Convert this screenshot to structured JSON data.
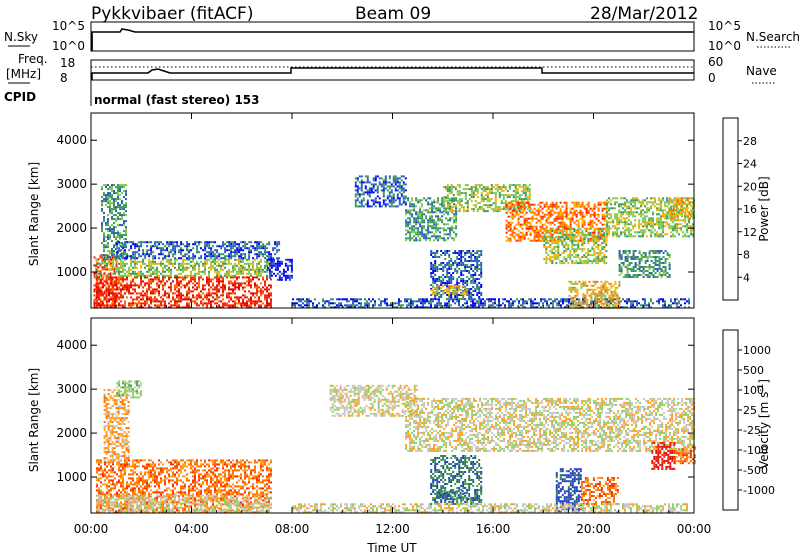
{
  "header": {
    "station": "Pykkvibaer (fitACF)",
    "beam": "Beam 09",
    "date": "28/Mar/2012"
  },
  "nsky_panel": {
    "left_label": "N.Sky",
    "right_label": "N.Search",
    "left_ticks": [
      "10^5",
      "10^0"
    ],
    "right_ticks": [
      "10^5",
      "10^0"
    ]
  },
  "freq_panel": {
    "left_label_1": "Freq.",
    "left_label_2": "[MHz]",
    "right_label": "Nave",
    "left_ticks": [
      "18",
      "8"
    ],
    "right_ticks": [
      "60",
      "0"
    ]
  },
  "cpid": {
    "label": "CPID",
    "value": "normal (fast stereo) 153"
  },
  "chart_data": [
    {
      "type": "heatmap",
      "name": "Power",
      "ylabel": "Slant Range [km]",
      "ylim": [
        180,
        4620
      ],
      "y_ticks": [
        "1000",
        "2000",
        "3000",
        "4000"
      ],
      "y_tick_values": [
        1000,
        2000,
        3000,
        4000
      ],
      "colorbar_label": "Power [dB]",
      "colorbar_ticks": [
        "28",
        "24",
        "20",
        "16",
        "12",
        "8",
        "4"
      ],
      "colorbar_colors": [
        "#0000ff",
        "#2a5cba",
        "#3c9a5a",
        "#7ec850",
        "#ffb000",
        "#ff6a00",
        "#ff2000",
        "#e00000"
      ],
      "regions": [
        {
          "t0": 0.1,
          "t1": 1.0,
          "r0": 200,
          "r1": 1400,
          "level": 6
        },
        {
          "t0": 0.2,
          "t1": 7.2,
          "r0": 200,
          "r1": 900,
          "level": 6
        },
        {
          "t0": 0.2,
          "t1": 7.2,
          "r0": 900,
          "r1": 1300,
          "level": 3
        },
        {
          "t0": 0.4,
          "t1": 1.4,
          "r0": 1300,
          "r1": 3000,
          "level": 2
        },
        {
          "t0": 1.0,
          "t1": 7.5,
          "r0": 1300,
          "r1": 1700,
          "level": 1
        },
        {
          "t0": 7.0,
          "t1": 8.0,
          "r0": 800,
          "r1": 1300,
          "level": 0
        },
        {
          "t0": 8.0,
          "t1": 23.8,
          "r0": 200,
          "r1": 400,
          "level": 1
        },
        {
          "t0": 10.5,
          "t1": 12.5,
          "r0": 2500,
          "r1": 3200,
          "level": 1
        },
        {
          "t0": 12.5,
          "t1": 14.5,
          "r0": 1700,
          "r1": 2700,
          "level": 2
        },
        {
          "t0": 14.0,
          "t1": 17.5,
          "r0": 2400,
          "r1": 3000,
          "level": 3
        },
        {
          "t0": 13.5,
          "t1": 15.5,
          "r0": 400,
          "r1": 1500,
          "level": 1
        },
        {
          "t0": 13.5,
          "t1": 15.0,
          "r0": 500,
          "r1": 700,
          "level": 4
        },
        {
          "t0": 16.5,
          "t1": 20.5,
          "r0": 1700,
          "r1": 2600,
          "level": 5
        },
        {
          "t0": 18.0,
          "t1": 20.5,
          "r0": 1200,
          "r1": 2000,
          "level": 3
        },
        {
          "t0": 19.0,
          "t1": 21.0,
          "r0": 200,
          "r1": 800,
          "level": 4
        },
        {
          "t0": 20.5,
          "t1": 24.0,
          "r0": 1800,
          "r1": 2700,
          "level": 3
        },
        {
          "t0": 21.0,
          "t1": 23.0,
          "r0": 900,
          "r1": 1500,
          "level": 2
        },
        {
          "t0": 23.0,
          "t1": 24.0,
          "r0": 2200,
          "r1": 2700,
          "level": 4
        }
      ]
    },
    {
      "type": "heatmap",
      "name": "Velocity",
      "ylabel": "Slant Range [km]",
      "ylim": [
        180,
        4620
      ],
      "y_ticks": [
        "1000",
        "2000",
        "3000",
        "4000"
      ],
      "y_tick_values": [
        1000,
        2000,
        3000,
        4000
      ],
      "colorbar_label": "Velocity [m s",
      "colorbar_label_exp": "-1",
      "colorbar_label_end": "]",
      "colorbar_ticks": [
        "1000",
        "500",
        "100",
        "25",
        "-25",
        "-100",
        "-500",
        "-1000"
      ],
      "colorbar_colors": [
        "#2040c0",
        "#2e7a5a",
        "#4aa050",
        "#8ed060",
        "#c8c8c0",
        "#ffa020",
        "#ff7000",
        "#ff3000",
        "#e01010"
      ],
      "regions": [
        {
          "t0": 0.2,
          "t1": 7.2,
          "r0": 200,
          "r1": 1400,
          "level": 6
        },
        {
          "t0": 0.2,
          "t1": 7.2,
          "r0": 200,
          "r1": 600,
          "level": 4
        },
        {
          "t0": 0.5,
          "t1": 1.5,
          "r0": 1400,
          "r1": 3000,
          "level": 5
        },
        {
          "t0": 1.0,
          "t1": 2.0,
          "r0": 2800,
          "r1": 3200,
          "level": 3
        },
        {
          "t0": 9.5,
          "t1": 13.0,
          "r0": 2400,
          "r1": 3100,
          "level": 4
        },
        {
          "t0": 12.5,
          "t1": 24.0,
          "r0": 1600,
          "r1": 2800,
          "level": 4
        },
        {
          "t0": 13.5,
          "t1": 15.5,
          "r0": 400,
          "r1": 1500,
          "level": 1
        },
        {
          "t0": 13.8,
          "t1": 15.0,
          "r0": 500,
          "r1": 700,
          "level": 1
        },
        {
          "t0": 18.5,
          "t1": 19.5,
          "r0": 200,
          "r1": 1200,
          "level": 0
        },
        {
          "t0": 19.5,
          "t1": 21.0,
          "r0": 400,
          "r1": 1000,
          "level": 6
        },
        {
          "t0": 22.3,
          "t1": 23.2,
          "r0": 1200,
          "r1": 1800,
          "level": 8
        },
        {
          "t0": 23.2,
          "t1": 24.0,
          "r0": 1300,
          "r1": 1700,
          "level": 6
        },
        {
          "t0": 8.0,
          "t1": 23.8,
          "r0": 200,
          "r1": 400,
          "level": 4
        }
      ]
    }
  ],
  "x_axis": {
    "label": "Time UT",
    "range": [
      0,
      24
    ],
    "ticks": [
      "00:00",
      "04:00",
      "08:00",
      "12:00",
      "16:00",
      "20:00",
      "00:00"
    ],
    "tick_values": [
      0,
      4,
      8,
      12,
      16,
      20,
      24
    ]
  }
}
